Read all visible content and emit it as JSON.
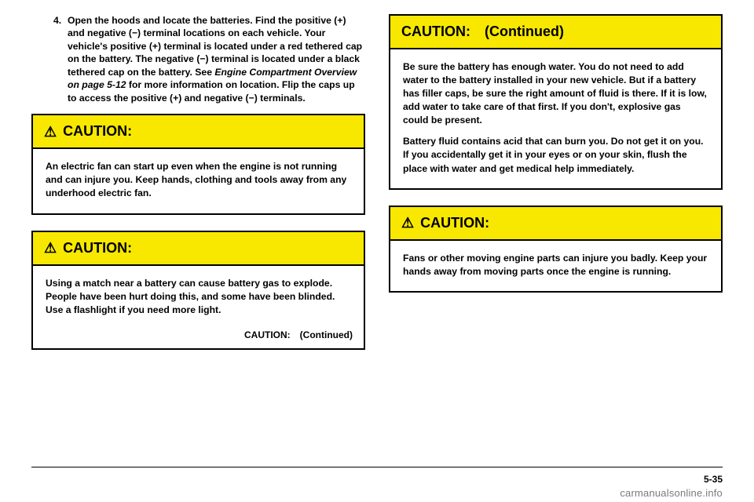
{
  "left": {
    "step": {
      "num": "4.",
      "text_a": "Open the hoods and locate the batteries. Find the positive (+) and negative (−) terminal locations on each vehicle. Your vehicle's positive (+) terminal is located under a red tethered cap on the battery. The negative (−) terminal is located under a black tethered cap on the battery. See ",
      "text_italic": "Engine Compartment Overview on page 5-12",
      "text_b": " for more information on location. Flip the caps up to access the positive (+) and negative (−) terminals."
    },
    "caution1": {
      "header": "CAUTION:",
      "body": "An electric fan can start up even when the engine is not running and can injure you. Keep hands, clothing and tools away from any underhood electric fan."
    },
    "caution2": {
      "header": "CAUTION:",
      "body": "Using a match near a battery can cause battery gas to explode. People have been hurt doing this, and some have been blinded. Use a flashlight if you need more light.",
      "cont": "CAUTION: (Continued)"
    }
  },
  "right": {
    "caution_cont": {
      "header": "CAUTION: (Continued)",
      "p1": "Be sure the battery has enough water. You do not need to add water to the battery installed in your new vehicle. But if a battery has filler caps, be sure the right amount of fluid is there. If it is low, add water to take care of that first. If you don't, explosive gas could be present.",
      "p2": "Battery fluid contains acid that can burn you. Do not get it on you. If you accidentally get it in your eyes or on your skin, flush the place with water and get medical help immediately."
    },
    "caution3": {
      "header": "CAUTION:",
      "body": "Fans or other moving engine parts can injure you badly. Keep your hands away from moving parts once the engine is running."
    }
  },
  "footer": {
    "pagenum": "5-35",
    "watermark": "carmanualsonline.info"
  },
  "colors": {
    "caution_bg": "#f8e800",
    "text": "#000000",
    "watermark": "#7a7a7a"
  }
}
